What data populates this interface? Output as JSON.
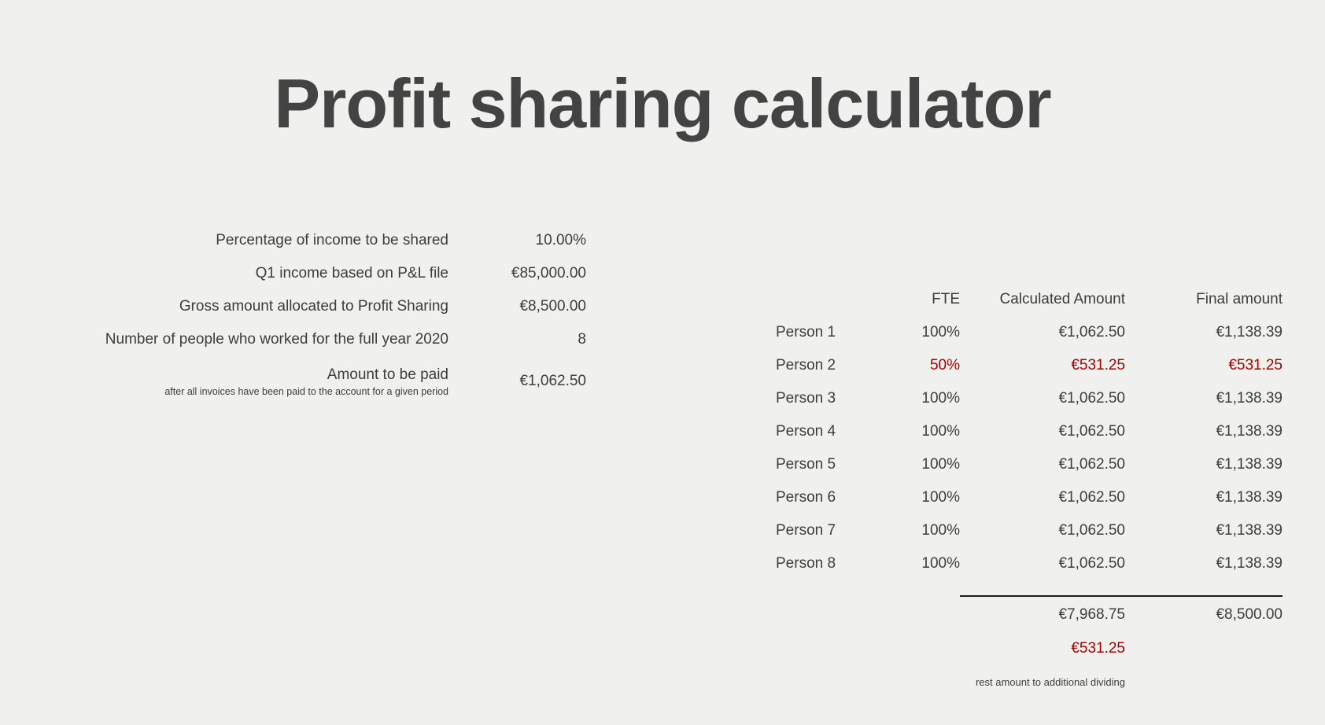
{
  "page": {
    "title_bold": "Profit sharing",
    "title_regular": " calculator"
  },
  "summary": {
    "rows": [
      {
        "label": "Percentage of income to be shared",
        "value": "10.00%"
      },
      {
        "label": "Q1 income based on P&L file",
        "value": "€85,000.00"
      },
      {
        "label": "Gross amount allocated to Profit Sharing",
        "value": "€8,500.00"
      },
      {
        "label": "Number of people who worked for the full year 2020",
        "value": "8"
      },
      {
        "label": "Amount to be paid",
        "sublabel": "after all invoices have been paid to the account for a given period",
        "value": "€1,062.50"
      }
    ]
  },
  "table": {
    "headers": {
      "fte": "FTE",
      "calculated": "Calculated Amount",
      "final": "Final amount"
    },
    "rows": [
      {
        "name": "Person 1",
        "fte": "100%",
        "calculated": "€1,062.50",
        "final": "€1,138.39",
        "highlight": false
      },
      {
        "name": "Person 2",
        "fte": "50%",
        "calculated": "€531.25",
        "final": "€531.25",
        "highlight": true
      },
      {
        "name": "Person 3",
        "fte": "100%",
        "calculated": "€1,062.50",
        "final": "€1,138.39",
        "highlight": false
      },
      {
        "name": "Person 4",
        "fte": "100%",
        "calculated": "€1,062.50",
        "final": "€1,138.39",
        "highlight": false
      },
      {
        "name": "Person 5",
        "fte": "100%",
        "calculated": "€1,062.50",
        "final": "€1,138.39",
        "highlight": false
      },
      {
        "name": "Person 6",
        "fte": "100%",
        "calculated": "€1,062.50",
        "final": "€1,138.39",
        "highlight": false
      },
      {
        "name": "Person 7",
        "fte": "100%",
        "calculated": "€1,062.50",
        "final": "€1,138.39",
        "highlight": false
      },
      {
        "name": "Person 8",
        "fte": "100%",
        "calculated": "€1,062.50",
        "final": "€1,138.39",
        "highlight": false
      }
    ],
    "totals": {
      "calculated": "€7,968.75",
      "final": "€8,500.00"
    },
    "rest": {
      "value": "€531.25",
      "note": "rest amount to additional dividing"
    }
  },
  "colors": {
    "background": "#f0f0ee",
    "text": "#3d3d3d",
    "highlight_red": "#a30000"
  }
}
